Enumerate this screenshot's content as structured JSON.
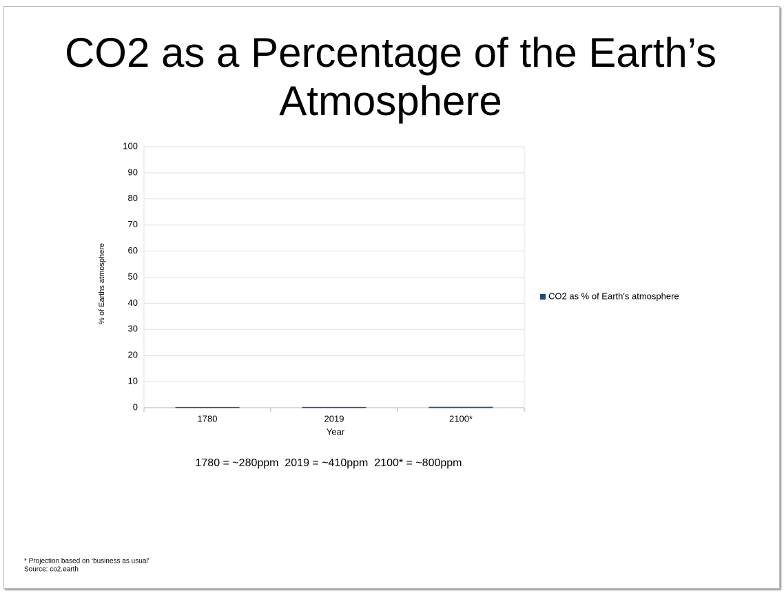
{
  "chart_data": {
    "type": "bar",
    "title": "CO2 as a Percentage of the Earth’s Atmosphere",
    "x_label": "Year",
    "y_label": "% of Earths atmosphere",
    "categories": [
      "1780",
      "2019",
      "2100*"
    ],
    "series": [
      {
        "name": "CO2 as % of Earth's atmosphere",
        "color": "#1f4e79",
        "values": [
          0.028,
          0.041,
          0.08
        ]
      }
    ],
    "ylim": [
      0,
      100
    ],
    "yticks": [
      0,
      10,
      20,
      30,
      40,
      50,
      60,
      70,
      80,
      90,
      100
    ],
    "grid": true,
    "legend": "right",
    "annotation": "1780 = ~280ppm  2019 = ~410ppm  2100* = ~800ppm",
    "notes": [
      "* Projection based on ‘business as usual’",
      "Source: co2.earth"
    ]
  }
}
